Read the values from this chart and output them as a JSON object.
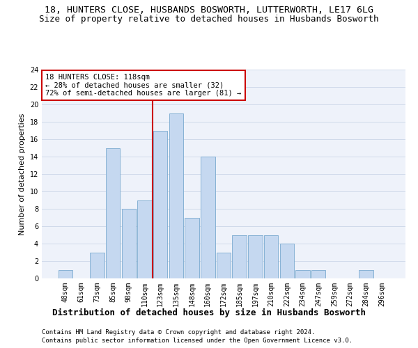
{
  "title": "18, HUNTERS CLOSE, HUSBANDS BOSWORTH, LUTTERWORTH, LE17 6LG",
  "subtitle": "Size of property relative to detached houses in Husbands Bosworth",
  "xlabel": "Distribution of detached houses by size in Husbands Bosworth",
  "ylabel": "Number of detached properties",
  "bar_labels": [
    "48sqm",
    "61sqm",
    "73sqm",
    "85sqm",
    "98sqm",
    "110sqm",
    "123sqm",
    "135sqm",
    "148sqm",
    "160sqm",
    "172sqm",
    "185sqm",
    "197sqm",
    "210sqm",
    "222sqm",
    "234sqm",
    "247sqm",
    "259sqm",
    "272sqm",
    "284sqm",
    "296sqm"
  ],
  "bar_values": [
    1,
    0,
    3,
    15,
    8,
    9,
    17,
    19,
    7,
    14,
    3,
    5,
    5,
    5,
    4,
    1,
    1,
    0,
    0,
    1,
    0
  ],
  "bar_color": "#c5d8f0",
  "bar_edge_color": "#7aaad0",
  "grid_color": "#d0daea",
  "background_color": "#eef2fa",
  "vline_color": "#cc0000",
  "vline_bar_index": 6,
  "annotation_line1": "18 HUNTERS CLOSE: 118sqm",
  "annotation_line2": "← 28% of detached houses are smaller (32)",
  "annotation_line3": "72% of semi-detached houses are larger (81) →",
  "annotation_box_color": "#cc0000",
  "ylim": [
    0,
    24
  ],
  "yticks": [
    0,
    2,
    4,
    6,
    8,
    10,
    12,
    14,
    16,
    18,
    20,
    22,
    24
  ],
  "footer1": "Contains HM Land Registry data © Crown copyright and database right 2024.",
  "footer2": "Contains public sector information licensed under the Open Government Licence v3.0.",
  "title_fontsize": 9.5,
  "subtitle_fontsize": 9,
  "xlabel_fontsize": 9,
  "ylabel_fontsize": 8,
  "tick_fontsize": 7,
  "annotation_fontsize": 7.5,
  "footer_fontsize": 6.5
}
